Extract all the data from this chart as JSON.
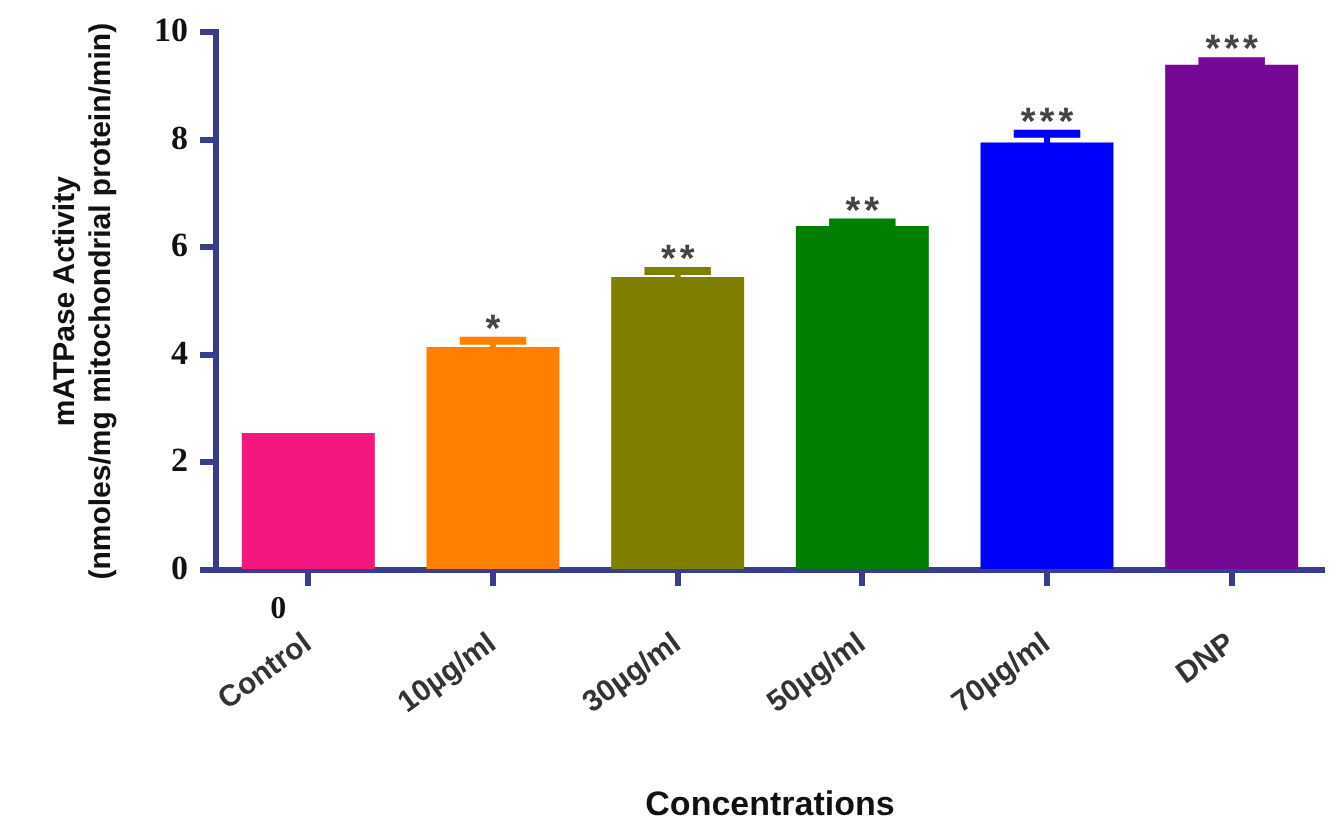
{
  "chart_data": {
    "type": "bar",
    "xlabel": "Concentrations",
    "ylabel": "mATPase Activity\n(nmoles/mg mitochondrial protein/min)",
    "categories": [
      "Control",
      "10µg/ml",
      "30µg/ml",
      "50µg/ml",
      "70µg/ml",
      "DNP"
    ],
    "values": [
      2.55,
      4.15,
      5.45,
      6.4,
      7.95,
      9.4
    ],
    "colors": [
      "#f5177f",
      "#ff7f00",
      "#808000",
      "#007f00",
      "#0000ff",
      "#760896"
    ],
    "errors": [
      null,
      0.15,
      0.15,
      0.1,
      0.2,
      0.1
    ],
    "ylim": [
      0,
      10
    ],
    "yticks": [
      0,
      2,
      4,
      6,
      8,
      10
    ],
    "grid": false,
    "legend": false,
    "annotations": [
      {
        "text": "*",
        "x": "10µg/ml",
        "y": 4.3
      },
      {
        "text": "**",
        "x": "30µg/ml",
        "y": 5.6
      },
      {
        "text": "**",
        "x": "50µg/ml",
        "y": 6.5
      },
      {
        "text": "***",
        "x": "70µg/ml",
        "y": 8.15
      },
      {
        "text": "***",
        "x": "DNP",
        "y": 9.5
      },
      "0"
    ]
  }
}
